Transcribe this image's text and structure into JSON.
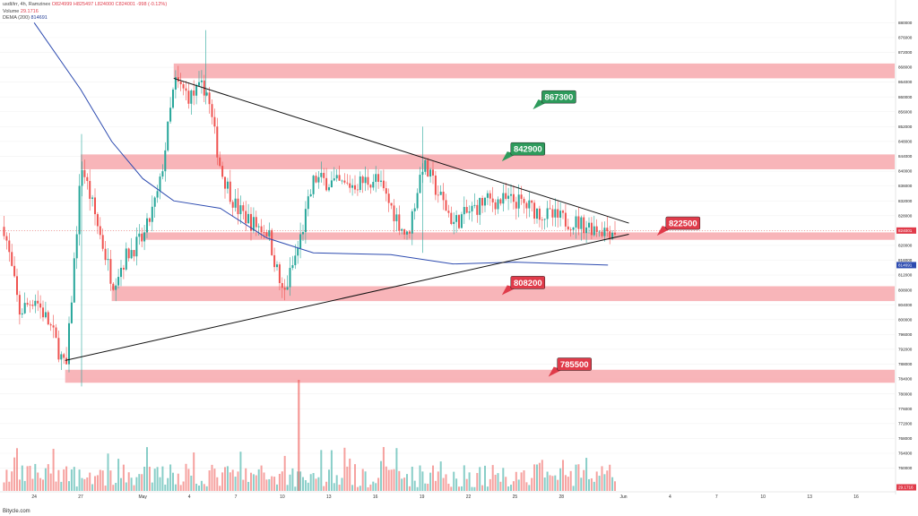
{
  "header": {
    "symbol_line": "usdt/irr, 4h, Ramzinex",
    "ohlc": "O824999 H825497 L824000 C824001 -998 (-0.12%)",
    "volume_label": "Volume",
    "volume_value": "29.1716",
    "dema_label": "DEMA (200)",
    "dema_value": "814691"
  },
  "footer": {
    "brand": "Bitycle.com"
  },
  "colors": {
    "bull": "#26a69a",
    "bear": "#ef5350",
    "zone": "#f7a8ad",
    "dema": "#2d4bb0",
    "green_label": "#2e9b5c",
    "red_label": "#e03b4a"
  },
  "chart_data": {
    "type": "candlestick",
    "timeframe": "4h",
    "y_ticks": [
      760000,
      764000,
      768000,
      772000,
      776000,
      780000,
      784000,
      788000,
      792000,
      796000,
      800000,
      804000,
      808000,
      812000,
      816000,
      820000,
      824000,
      828000,
      832000,
      836000,
      840000,
      844000,
      848000,
      852000,
      856000,
      860000,
      864000,
      868000,
      872000,
      876000,
      880000
    ],
    "ylim": [
      757000,
      882000
    ],
    "x_ticks": [
      "24",
      "27",
      "May",
      "4",
      "7",
      "10",
      "13",
      "16",
      "19",
      "22",
      "25",
      "28",
      "Jun",
      "4",
      "7",
      "10",
      "13",
      "16"
    ],
    "price_axis_tags": {
      "last": "824001",
      "dema": "814691",
      "volume": "29.1716"
    },
    "levels": [
      {
        "label": "867300",
        "price": 867300,
        "zone": [
          865000,
          869000
        ],
        "kind": "resistance"
      },
      {
        "label": "842900",
        "price": 842900,
        "zone": [
          840500,
          844500
        ],
        "kind": "resistance"
      },
      {
        "label": "822500",
        "price": 822500,
        "zone": [
          821500,
          823500
        ],
        "kind": "pivot"
      },
      {
        "label": "808200",
        "price": 808200,
        "zone": [
          805000,
          809000
        ],
        "kind": "support"
      },
      {
        "label": "785500",
        "price": 785500,
        "zone": [
          783000,
          786500
        ],
        "kind": "support"
      }
    ],
    "triangle": {
      "upper_line": [
        [
          "May 3",
          865000
        ],
        [
          "Jun 1",
          826000
        ]
      ],
      "lower_line": [
        [
          "Apr 26",
          789000
        ],
        [
          "Jun 1",
          823000
        ]
      ]
    },
    "dema": [
      [
        "Apr 24",
        880000
      ],
      [
        "Apr 27",
        862000
      ],
      [
        "Apr 29",
        848000
      ],
      [
        "May 1",
        838000
      ],
      [
        "May 3",
        832000
      ],
      [
        "May 6",
        830000
      ],
      [
        "May 9",
        822000
      ],
      [
        "May 12",
        818000
      ],
      [
        "May 17",
        817500
      ],
      [
        "May 21",
        815000
      ],
      [
        "May 25",
        815500
      ],
      [
        "May 31",
        814691
      ]
    ],
    "price_path": [
      [
        "Apr 22",
        825000
      ],
      [
        "Apr 23",
        802000
      ],
      [
        "Apr 24",
        806000
      ],
      [
        "Apr 25",
        798000
      ],
      [
        "Apr 26",
        786000
      ],
      [
        "Apr 27",
        842000
      ],
      [
        "Apr 28",
        826000
      ],
      [
        "Apr 29",
        810000
      ],
      [
        "Apr 30",
        818000
      ],
      [
        "May 1",
        822000
      ],
      [
        "May 2",
        835000
      ],
      [
        "May 3",
        864000
      ],
      [
        "May 4",
        860000
      ],
      [
        "May 5",
        863000
      ],
      [
        "May 6",
        840000
      ],
      [
        "May 7",
        830000
      ],
      [
        "May 8",
        826000
      ],
      [
        "May 9",
        824000
      ],
      [
        "May 10",
        806000
      ],
      [
        "May 11",
        820000
      ],
      [
        "May 12",
        838000
      ],
      [
        "May 14",
        836000
      ],
      [
        "May 16",
        838000
      ],
      [
        "May 18",
        822000
      ],
      [
        "May 19",
        842000
      ],
      [
        "May 21",
        826000
      ],
      [
        "May 23",
        832000
      ],
      [
        "May 25",
        832000
      ],
      [
        "May 27",
        828000
      ],
      [
        "May 29",
        826000
      ],
      [
        "May 31",
        824001
      ]
    ],
    "volume_spike": {
      "date": "May 11",
      "value": "max"
    }
  }
}
